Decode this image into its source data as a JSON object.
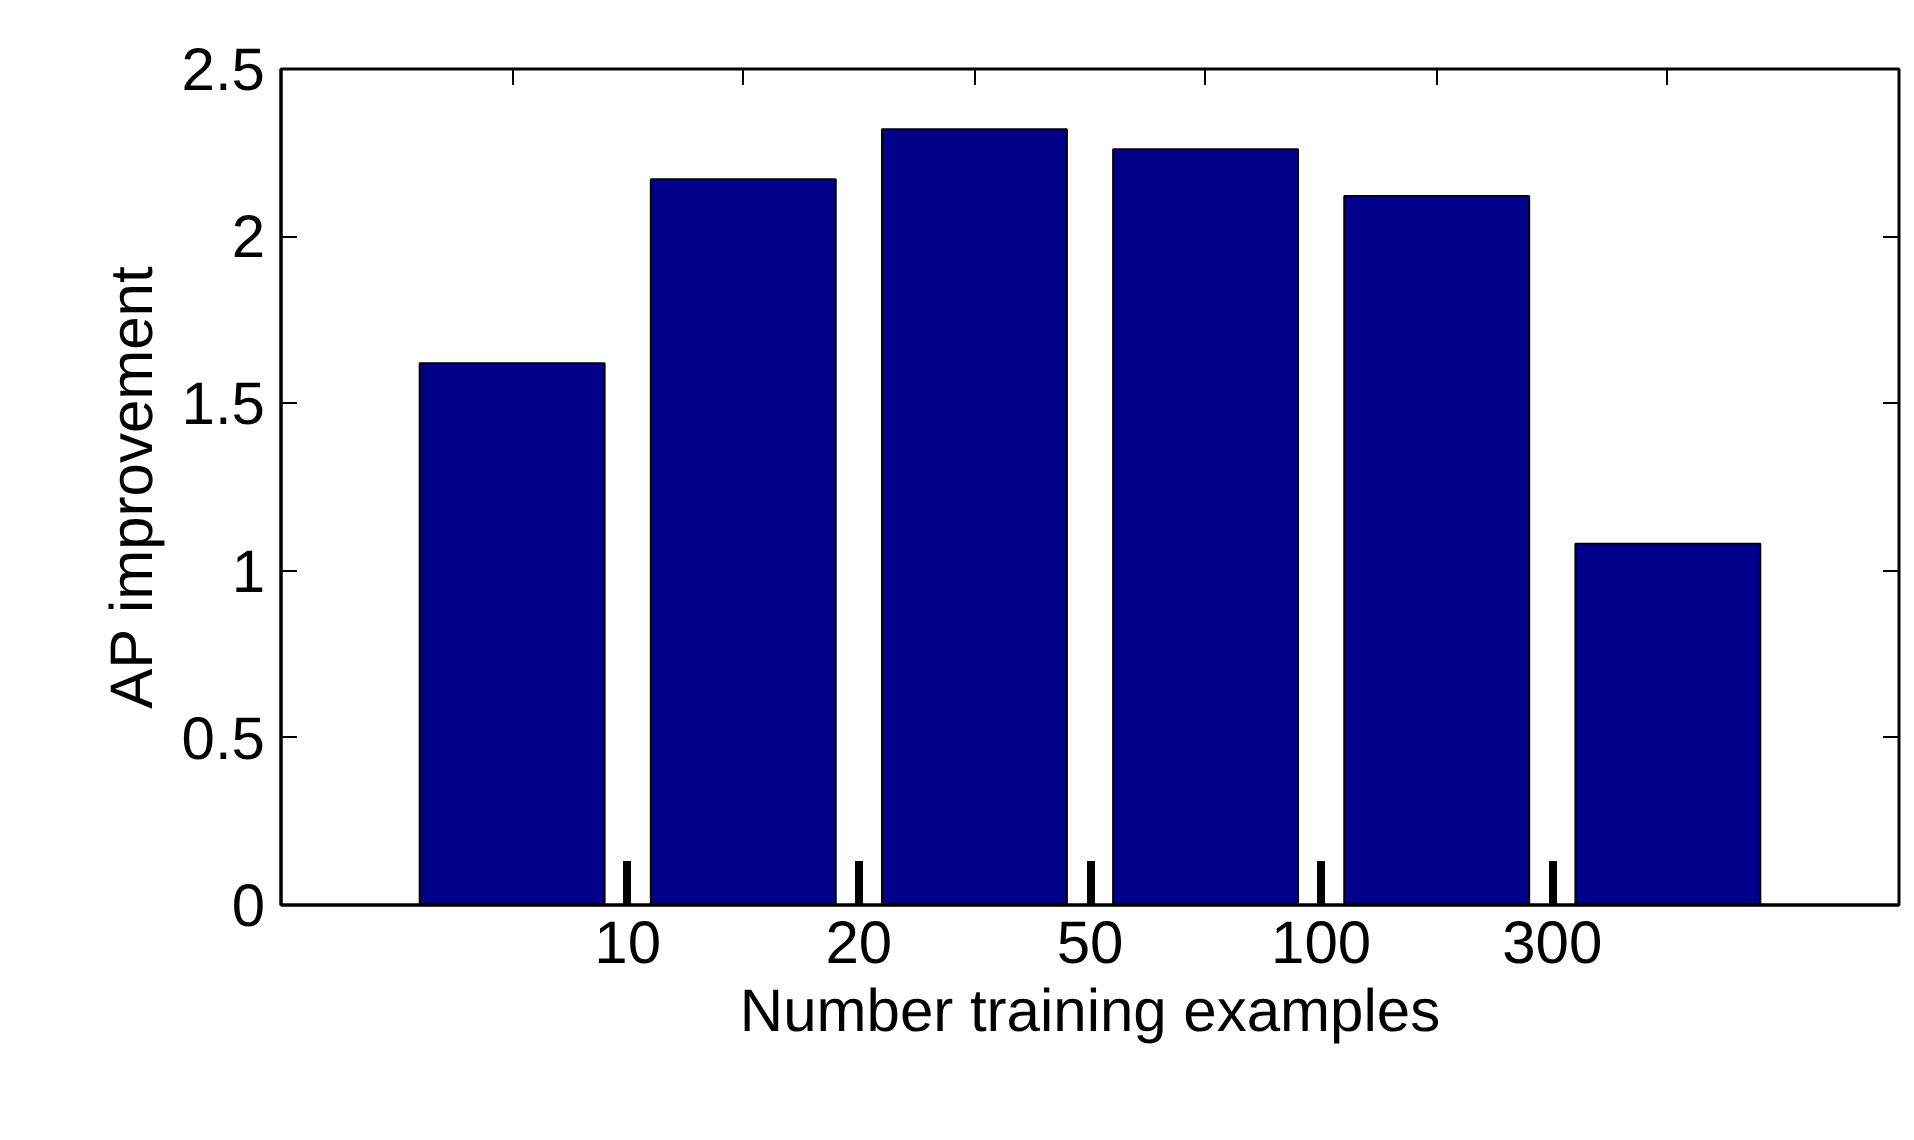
{
  "chart_data": {
    "type": "bar",
    "xlabel": "Number training examples",
    "ylabel": "AP improvement",
    "categories": [
      null,
      null,
      null,
      null,
      null,
      null
    ],
    "values": [
      1.62,
      2.17,
      2.32,
      2.26,
      2.12,
      1.08
    ],
    "color": "#00008b",
    "annotations": [
      "10",
      "20",
      "50",
      "100",
      "300"
    ],
    "ylim": [
      0,
      2.5
    ],
    "yticks": [
      0,
      0.5,
      1,
      1.5,
      2,
      2.5
    ],
    "grid": false
  }
}
